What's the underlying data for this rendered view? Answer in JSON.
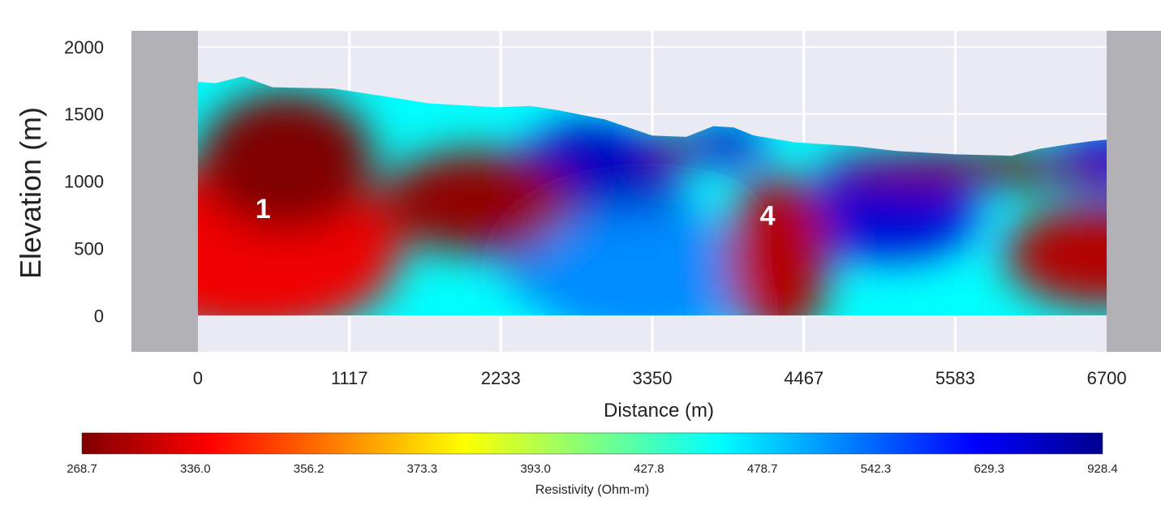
{
  "chart_data": {
    "type": "heatmap",
    "title": "",
    "xlabel": "Distance (m)",
    "ylabel": "Elevation (m)",
    "xlim": [
      -490,
      7100
    ],
    "ylim": [
      -270,
      2120
    ],
    "x_ticks": [
      0,
      1117,
      2233,
      3350,
      4467,
      5583,
      6700
    ],
    "x_tick_labels": [
      "0",
      "1117",
      "2233",
      "3350",
      "4467",
      "5583",
      "6700"
    ],
    "y_ticks": [
      0,
      500,
      1000,
      1500,
      2000
    ],
    "y_tick_labels": [
      "0",
      "500",
      "1000",
      "1500",
      "2000"
    ],
    "grid": true,
    "data_extent_x": [
      0,
      6700
    ],
    "data_bottom_elevation": 0,
    "surface_profile": [
      {
        "x": 0,
        "y": 1740
      },
      {
        "x": 130,
        "y": 1730
      },
      {
        "x": 330,
        "y": 1780
      },
      {
        "x": 550,
        "y": 1700
      },
      {
        "x": 1000,
        "y": 1690
      },
      {
        "x": 1450,
        "y": 1620
      },
      {
        "x": 1700,
        "y": 1580
      },
      {
        "x": 2200,
        "y": 1550
      },
      {
        "x": 2450,
        "y": 1560
      },
      {
        "x": 2650,
        "y": 1530
      },
      {
        "x": 3000,
        "y": 1460
      },
      {
        "x": 3350,
        "y": 1340
      },
      {
        "x": 3600,
        "y": 1330
      },
      {
        "x": 3800,
        "y": 1410
      },
      {
        "x": 3950,
        "y": 1400
      },
      {
        "x": 4100,
        "y": 1340
      },
      {
        "x": 4400,
        "y": 1290
      },
      {
        "x": 4850,
        "y": 1260
      },
      {
        "x": 5150,
        "y": 1225
      },
      {
        "x": 5583,
        "y": 1200
      },
      {
        "x": 6000,
        "y": 1190
      },
      {
        "x": 6200,
        "y": 1240
      },
      {
        "x": 6450,
        "y": 1280
      },
      {
        "x": 6600,
        "y": 1300
      },
      {
        "x": 6700,
        "y": 1310
      }
    ],
    "anomalies": [
      {
        "x": 650,
        "y": 1150,
        "rx": 650,
        "ry": 520,
        "value": 268.7
      },
      {
        "x": 400,
        "y": 500,
        "rx": 1100,
        "ry": 650,
        "value": 336.0
      },
      {
        "x": 2050,
        "y": 850,
        "rx": 700,
        "ry": 380,
        "value": 280.0
      },
      {
        "x": 3500,
        "y": 1250,
        "rx": 170,
        "ry": 120,
        "value": 268.7
      },
      {
        "x": 4270,
        "y": 430,
        "rx": 380,
        "ry": 620,
        "value": 300.0
      },
      {
        "x": 5700,
        "y": 1100,
        "rx": 1150,
        "ry": 130,
        "value": 268.7
      },
      {
        "x": 6650,
        "y": 450,
        "rx": 700,
        "ry": 380,
        "value": 300.0
      },
      {
        "x": 2900,
        "y": 700,
        "rx": 700,
        "ry": 750,
        "value": 780.0
      },
      {
        "x": 5100,
        "y": 750,
        "rx": 650,
        "ry": 330,
        "value": 720.0
      },
      {
        "x": 3900,
        "y": 1270,
        "rx": 280,
        "ry": 150,
        "value": 800.0
      },
      {
        "x": 3300,
        "y": 300,
        "rx": 900,
        "ry": 500,
        "value": 520.0
      },
      {
        "x": 6700,
        "y": 1150,
        "rx": 350,
        "ry": 230,
        "value": 700.0
      }
    ],
    "labels": [
      {
        "text": "1",
        "x": 480,
        "y": 780
      },
      {
        "text": "4",
        "x": 4200,
        "y": 730
      }
    ],
    "colorbar": {
      "label": "Resistivity (Ohm-m)",
      "ticks": [
        "268.7",
        "336.0",
        "356.2",
        "373.3",
        "393.0",
        "427.8",
        "478.7",
        "542.3",
        "629.3",
        "928.4"
      ],
      "colormap": [
        "#7f0000",
        "#ff0000",
        "#ff8000",
        "#ffff00",
        "#80ff80",
        "#00ffff",
        "#0080ff",
        "#0000ff",
        "#00008f"
      ]
    },
    "colors": {
      "plot_background": "#e9eaf3",
      "padding_gray": "#b1b1b5",
      "grid": "#ffffff"
    }
  }
}
